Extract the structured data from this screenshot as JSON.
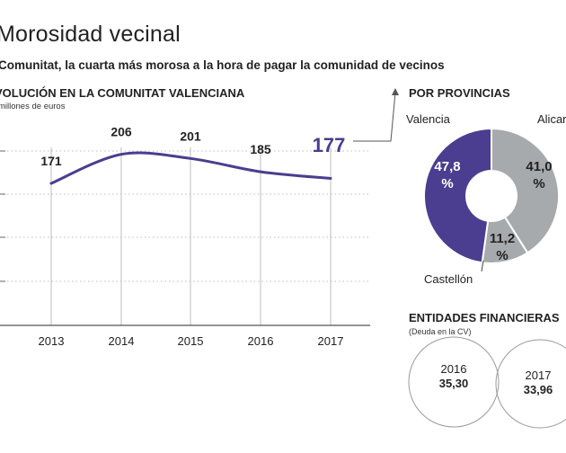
{
  "header": {
    "title": "Morosidad vecinal",
    "subtitle": "Comunitat, la cuarta más morosa a la hora de pagar la comunidad de vecinos",
    "left_heading": "VOLUCIÓN EN LA COMUNITAT VALENCIANA",
    "units": "millones de euros",
    "provinces_heading": "POR PROVINCIAS",
    "entities_heading": "ENTIDADES FINANCIERAS",
    "entities_sub": "(Deuda en la CV)"
  },
  "colors": {
    "accent": "#4b3d8f",
    "grey": "#a7aaad",
    "grid": "#bcbcbc"
  },
  "chart_data": [
    {
      "type": "line",
      "x": [
        "2013",
        "2014",
        "2015",
        "2016",
        "2017"
      ],
      "values": [
        171,
        206,
        201,
        185,
        177
      ],
      "labels": [
        "171",
        "206",
        "201",
        "185",
        "177"
      ],
      "ylim": [
        0,
        210
      ],
      "grid": true
    },
    {
      "type": "pie",
      "donut": true,
      "slices": [
        {
          "label": "Valencia",
          "value": 47.8,
          "value_label": "47,8 %",
          "color": "#4b3d8f"
        },
        {
          "label": "Alicante",
          "display_label": "Alicar",
          "value": 41.0,
          "value_label": "41,0 %",
          "color": "#a7aaad"
        },
        {
          "label": "Castellón",
          "value": 11.2,
          "value_label": "11,2 %",
          "color": "#a7aaad"
        }
      ]
    },
    {
      "type": "table",
      "rows": [
        {
          "year": "2016",
          "value": "35,30"
        },
        {
          "year": "2017",
          "value": "33,96"
        }
      ]
    }
  ]
}
